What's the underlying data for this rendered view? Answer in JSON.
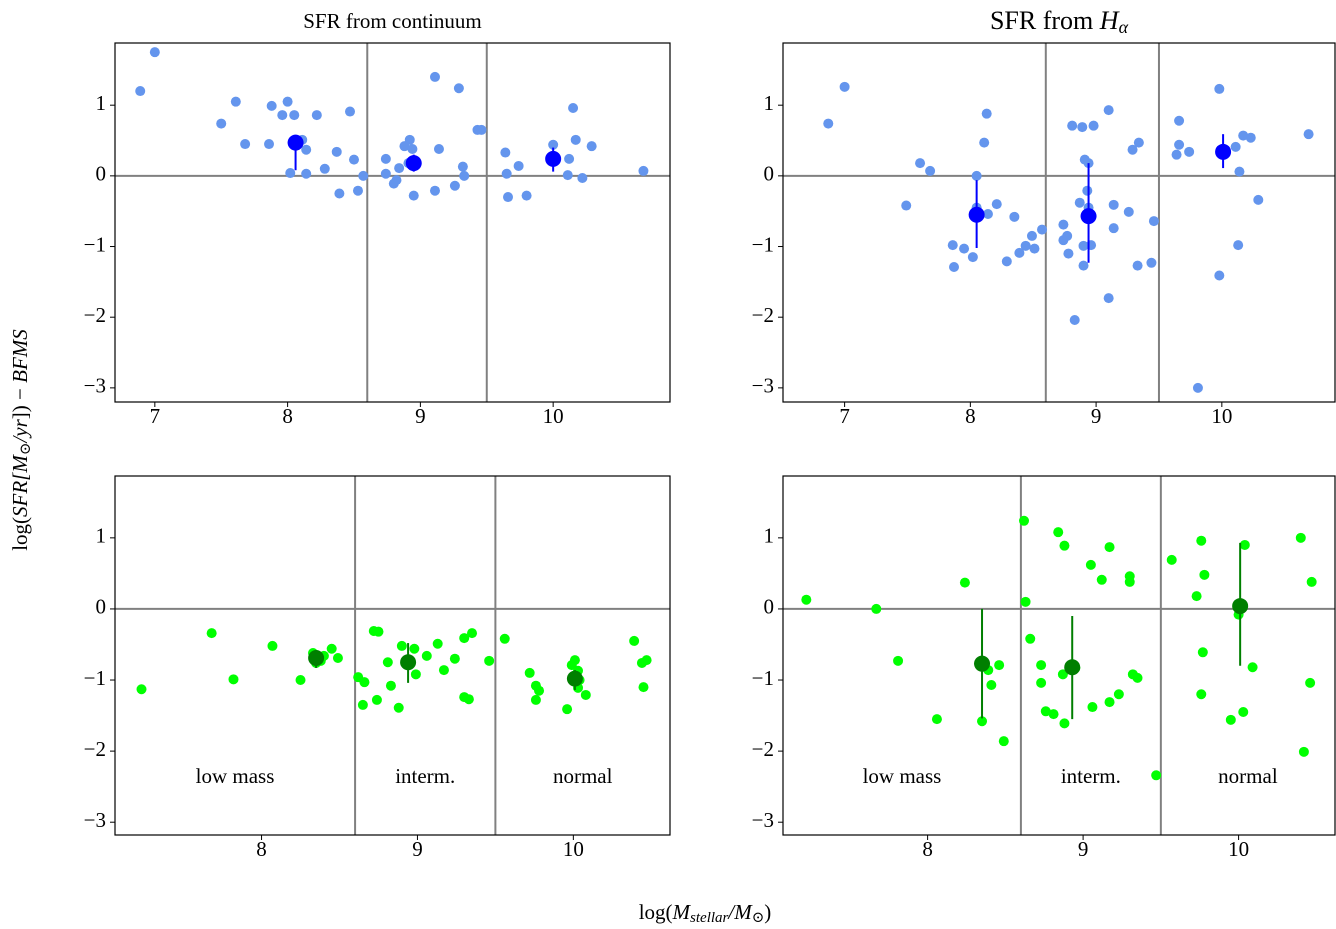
{
  "xlabel": [
    "log(",
    "M",
    "stellar",
    "/",
    "M",
    "⊙",
    ")"
  ],
  "ylabel": [
    "log(",
    "SFR",
    "[",
    "M",
    "⊙",
    "/",
    "yr",
    "]) − ",
    "BFMS"
  ],
  "chart_data": [
    {
      "type": "scatter",
      "title": "SFR from continuum",
      "xlim": [
        6.7,
        10.88
      ],
      "ylim": [
        -3.2,
        1.88
      ],
      "xticks": [
        7,
        8,
        9,
        10
      ],
      "yticks": [
        {
          "value": -3,
          "label": "−3"
        },
        {
          "value": -2,
          "label": "−2"
        },
        {
          "value": -1,
          "label": "−1"
        },
        0,
        1
      ],
      "vlines": [
        8.6,
        9.5
      ],
      "hline": 0,
      "series": [
        {
          "color": "#6495ed",
          "x": [
            6.89,
            7.0,
            7.5,
            7.61,
            7.68,
            7.88,
            7.86,
            7.96,
            8.0,
            8.05,
            8.02,
            8.11,
            8.14,
            8.14,
            8.22,
            8.28,
            8.37,
            8.39,
            8.47,
            8.5,
            8.53,
            8.57,
            8.74,
            8.74,
            8.8,
            8.82,
            8.84,
            8.88,
            8.92,
            8.94,
            8.95,
            8.91,
            9.11,
            9.11,
            9.14,
            9.26,
            9.29,
            9.32,
            9.33,
            9.43,
            9.46,
            9.64,
            9.65,
            9.66,
            9.74,
            9.8,
            10.0,
            10.12,
            10.11,
            10.15,
            10.17,
            10.22,
            10.29,
            10.68
          ],
          "values": [
            1.2,
            1.75,
            0.74,
            1.05,
            0.45,
            0.99,
            0.45,
            0.86,
            1.05,
            0.86,
            0.04,
            0.51,
            0.37,
            0.03,
            0.86,
            0.1,
            0.34,
            -0.25,
            0.91,
            0.23,
            -0.21,
            0.0,
            0.24,
            0.03,
            -0.11,
            -0.06,
            0.11,
            0.42,
            0.51,
            0.38,
            -0.28,
            0.18,
            1.4,
            -0.21,
            0.38,
            -0.14,
            1.24,
            0.13,
            0.0,
            0.65,
            0.65,
            0.33,
            0.03,
            -0.3,
            0.14,
            -0.28,
            0.44,
            0.24,
            0.01,
            0.96,
            0.51,
            -0.03,
            0.42,
            0.07
          ]
        },
        {
          "color": "#0000ff",
          "x": [
            8.06,
            8.95,
            10.0
          ],
          "values": [
            0.47,
            0.18,
            0.24
          ],
          "errors": [
            [
              0.39,
              0.11
            ],
            [
              0.12,
              0.12
            ],
            [
              0.18,
              0.16
            ]
          ]
        }
      ]
    },
    {
      "type": "scatter",
      "title": [
        "SFR from ",
        "H",
        "α"
      ],
      "xlim": [
        6.51,
        10.9
      ],
      "ylim": [
        -3.2,
        1.88
      ],
      "xticks": [
        7,
        8,
        9,
        10
      ],
      "yticks": [
        {
          "value": -3,
          "label": "−3"
        },
        {
          "value": -2,
          "label": "−2"
        },
        {
          "value": -1,
          "label": "−1"
        },
        0,
        1
      ],
      "vlines": [
        8.6,
        9.5
      ],
      "hline": 0,
      "series": [
        {
          "color": "#6495ed",
          "x": [
            6.87,
            7.0,
            7.49,
            7.6,
            7.68,
            7.86,
            7.87,
            7.95,
            8.02,
            8.05,
            8.05,
            8.11,
            8.13,
            8.14,
            8.21,
            8.29,
            8.35,
            8.39,
            8.44,
            8.49,
            8.51,
            8.57,
            8.74,
            8.74,
            8.78,
            8.77,
            8.81,
            8.83,
            8.87,
            8.89,
            8.9,
            8.9,
            8.91,
            8.94,
            8.93,
            8.94,
            8.96,
            8.98,
            9.1,
            9.1,
            9.14,
            9.14,
            9.26,
            9.29,
            9.33,
            9.34,
            9.44,
            9.46,
            9.64,
            9.66,
            9.66,
            9.74,
            9.81,
            9.98,
            9.98,
            10.11,
            10.13,
            10.14,
            10.17,
            10.23,
            10.29,
            10.69
          ],
          "values": [
            0.74,
            1.26,
            -0.42,
            0.18,
            0.07,
            -0.98,
            -1.29,
            -1.03,
            -1.15,
            0.0,
            -0.45,
            0.47,
            0.88,
            -0.54,
            -0.4,
            -1.21,
            -0.58,
            -1.09,
            -0.99,
            -0.85,
            -1.03,
            -0.76,
            -0.91,
            -0.69,
            -1.1,
            -0.85,
            0.71,
            -2.04,
            -0.38,
            0.69,
            -1.27,
            -0.99,
            0.23,
            0.18,
            -0.21,
            -0.45,
            -0.98,
            0.71,
            -1.73,
            0.93,
            -0.41,
            -0.74,
            -0.51,
            0.37,
            -1.27,
            0.47,
            -1.23,
            -0.64,
            0.3,
            0.78,
            0.44,
            0.34,
            -3.0,
            1.23,
            -1.41,
            0.41,
            -0.98,
            0.06,
            0.57,
            0.54,
            -0.34,
            0.59
          ]
        },
        {
          "color": "#0000ff",
          "x": [
            8.05,
            8.94,
            10.01
          ],
          "values": [
            -0.55,
            -0.57,
            0.34
          ],
          "errors": [
            [
              0.47,
              0.49
            ],
            [
              0.66,
              0.75
            ],
            [
              0.23,
              0.25
            ]
          ]
        }
      ]
    },
    {
      "type": "scatter",
      "xlim": [
        7.06,
        10.62
      ],
      "ylim": [
        -3.18,
        1.87
      ],
      "xticks": [
        8,
        9,
        10
      ],
      "yticks": [
        {
          "value": -3,
          "label": "−3"
        },
        {
          "value": -2,
          "label": "−2"
        },
        {
          "value": -1,
          "label": "−1"
        },
        0,
        1
      ],
      "vlines": [
        8.6,
        9.5
      ],
      "hline": 0,
      "annotations": [
        "low mass",
        "interm.",
        "normal"
      ],
      "series": [
        {
          "color": "#00ff00",
          "x": [
            7.23,
            7.68,
            7.82,
            8.07,
            8.25,
            8.33,
            8.35,
            8.38,
            8.4,
            8.45,
            8.49,
            8.62,
            8.65,
            8.66,
            8.72,
            8.75,
            8.74,
            8.81,
            8.83,
            8.88,
            8.9,
            8.98,
            8.99,
            9.06,
            9.13,
            9.17,
            9.24,
            9.3,
            9.33,
            9.3,
            9.35,
            9.46,
            9.56,
            9.72,
            9.76,
            9.78,
            9.76,
            9.96,
            9.99,
            10.01,
            10.03,
            10.04,
            10.03,
            10.08,
            10.39,
            10.44,
            10.47,
            10.45
          ],
          "values": [
            -1.13,
            -0.34,
            -0.99,
            -0.52,
            -1.0,
            -0.62,
            -0.76,
            -0.73,
            -0.66,
            -0.56,
            -0.69,
            -0.96,
            -1.35,
            -1.03,
            -0.31,
            -0.32,
            -1.28,
            -0.75,
            -1.08,
            -1.39,
            -0.52,
            -0.56,
            -0.92,
            -0.66,
            -0.49,
            -0.86,
            -0.7,
            -1.24,
            -1.27,
            -0.41,
            -0.34,
            -0.73,
            -0.42,
            -0.9,
            -1.08,
            -1.15,
            -1.28,
            -1.41,
            -0.79,
            -0.72,
            -0.87,
            -1.0,
            -1.11,
            -1.21,
            -0.45,
            -0.76,
            -0.72,
            -1.1
          ]
        },
        {
          "color": "#007f00",
          "x": [
            8.35,
            8.94,
            10.01
          ],
          "values": [
            -0.69,
            -0.75,
            -0.98
          ],
          "errors": [
            [
              0.14,
              0.11
            ],
            [
              0.29,
              0.27
            ],
            [
              0.16,
              0.12
            ]
          ]
        }
      ]
    },
    {
      "type": "scatter",
      "xlim": [
        7.07,
        10.62
      ],
      "ylim": [
        -3.18,
        1.87
      ],
      "xticks": [
        8,
        9,
        10
      ],
      "yticks": [
        {
          "value": -3,
          "label": "−3"
        },
        {
          "value": -2,
          "label": "−2"
        },
        {
          "value": -1,
          "label": "−1"
        },
        0,
        1
      ],
      "vlines": [
        8.6,
        9.5
      ],
      "hline": 0,
      "annotations": [
        "low mass",
        "interm.",
        "normal"
      ],
      "series": [
        {
          "color": "#00ff00",
          "x": [
            7.22,
            7.67,
            7.81,
            8.06,
            8.24,
            8.35,
            8.39,
            8.41,
            8.46,
            8.49,
            8.62,
            8.63,
            8.66,
            8.73,
            8.73,
            8.76,
            8.81,
            8.84,
            8.88,
            8.88,
            8.87,
            8.95,
            9.05,
            9.06,
            9.12,
            9.17,
            9.17,
            9.23,
            9.3,
            9.3,
            9.32,
            9.35,
            9.47,
            9.57,
            9.73,
            9.76,
            9.78,
            9.77,
            9.76,
            9.95,
            10.0,
            10.03,
            10.04,
            10.09,
            10.4,
            10.47,
            10.46,
            10.42
          ],
          "values": [
            0.13,
            0.0,
            -0.73,
            -1.55,
            0.37,
            -1.58,
            -0.86,
            -1.07,
            -0.79,
            -1.86,
            1.24,
            0.1,
            -0.42,
            -0.79,
            -1.04,
            -1.44,
            -1.48,
            1.08,
            0.89,
            -1.61,
            -0.92,
            -0.83,
            0.62,
            -1.38,
            0.41,
            0.87,
            -1.31,
            -1.2,
            0.46,
            0.38,
            -0.92,
            -0.97,
            -2.34,
            0.69,
            0.18,
            0.96,
            0.48,
            -0.61,
            -1.2,
            -1.56,
            -0.08,
            -1.45,
            0.9,
            -0.82,
            1.0,
            0.38,
            -1.04,
            -2.01
          ]
        },
        {
          "color": "#007f00",
          "x": [
            8.35,
            8.93,
            10.01
          ],
          "values": [
            -0.77,
            -0.82,
            0.04
          ],
          "errors": [
            [
              0.77,
              0.77
            ],
            [
              0.73,
              0.72
            ],
            [
              0.84,
              0.89
            ]
          ]
        }
      ]
    }
  ]
}
